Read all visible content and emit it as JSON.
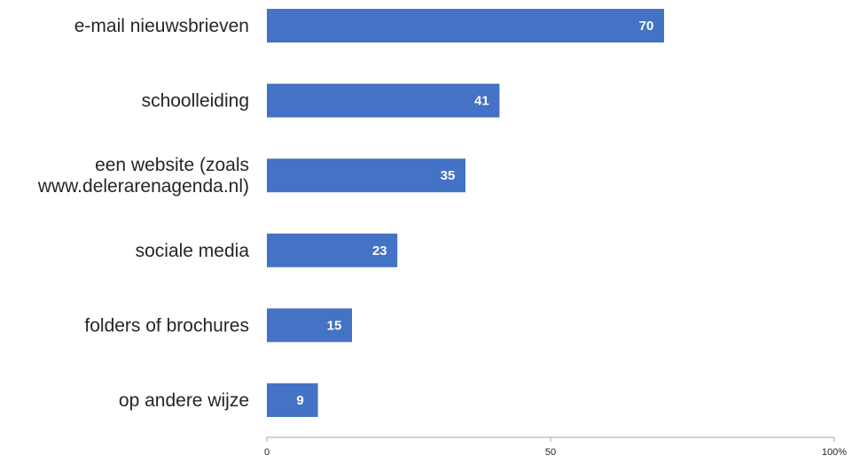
{
  "chart_data": {
    "type": "bar",
    "orientation": "horizontal",
    "categories": [
      [
        "e-mail nieuwsbrieven"
      ],
      [
        "schoolleiding"
      ],
      [
        "een website (zoals",
        "www.delerarenagenda.nl)"
      ],
      [
        "sociale media"
      ],
      [
        "folders of brochures"
      ],
      [
        "op andere wijze"
      ]
    ],
    "values": [
      70,
      41,
      35,
      23,
      15,
      9
    ],
    "data_labels": [
      "70",
      "41",
      "35",
      "23",
      "15",
      "9"
    ],
    "xlim": [
      0,
      100
    ],
    "x_ticks": [
      "0",
      "50",
      "100%"
    ],
    "title": "",
    "xlabel": "",
    "ylabel": "",
    "grid": false,
    "legend": "none",
    "colors": {
      "bar": "#4472C4",
      "axis": "#A6A6A6",
      "text": "#262626",
      "data_label": "#FFFFFF"
    }
  }
}
